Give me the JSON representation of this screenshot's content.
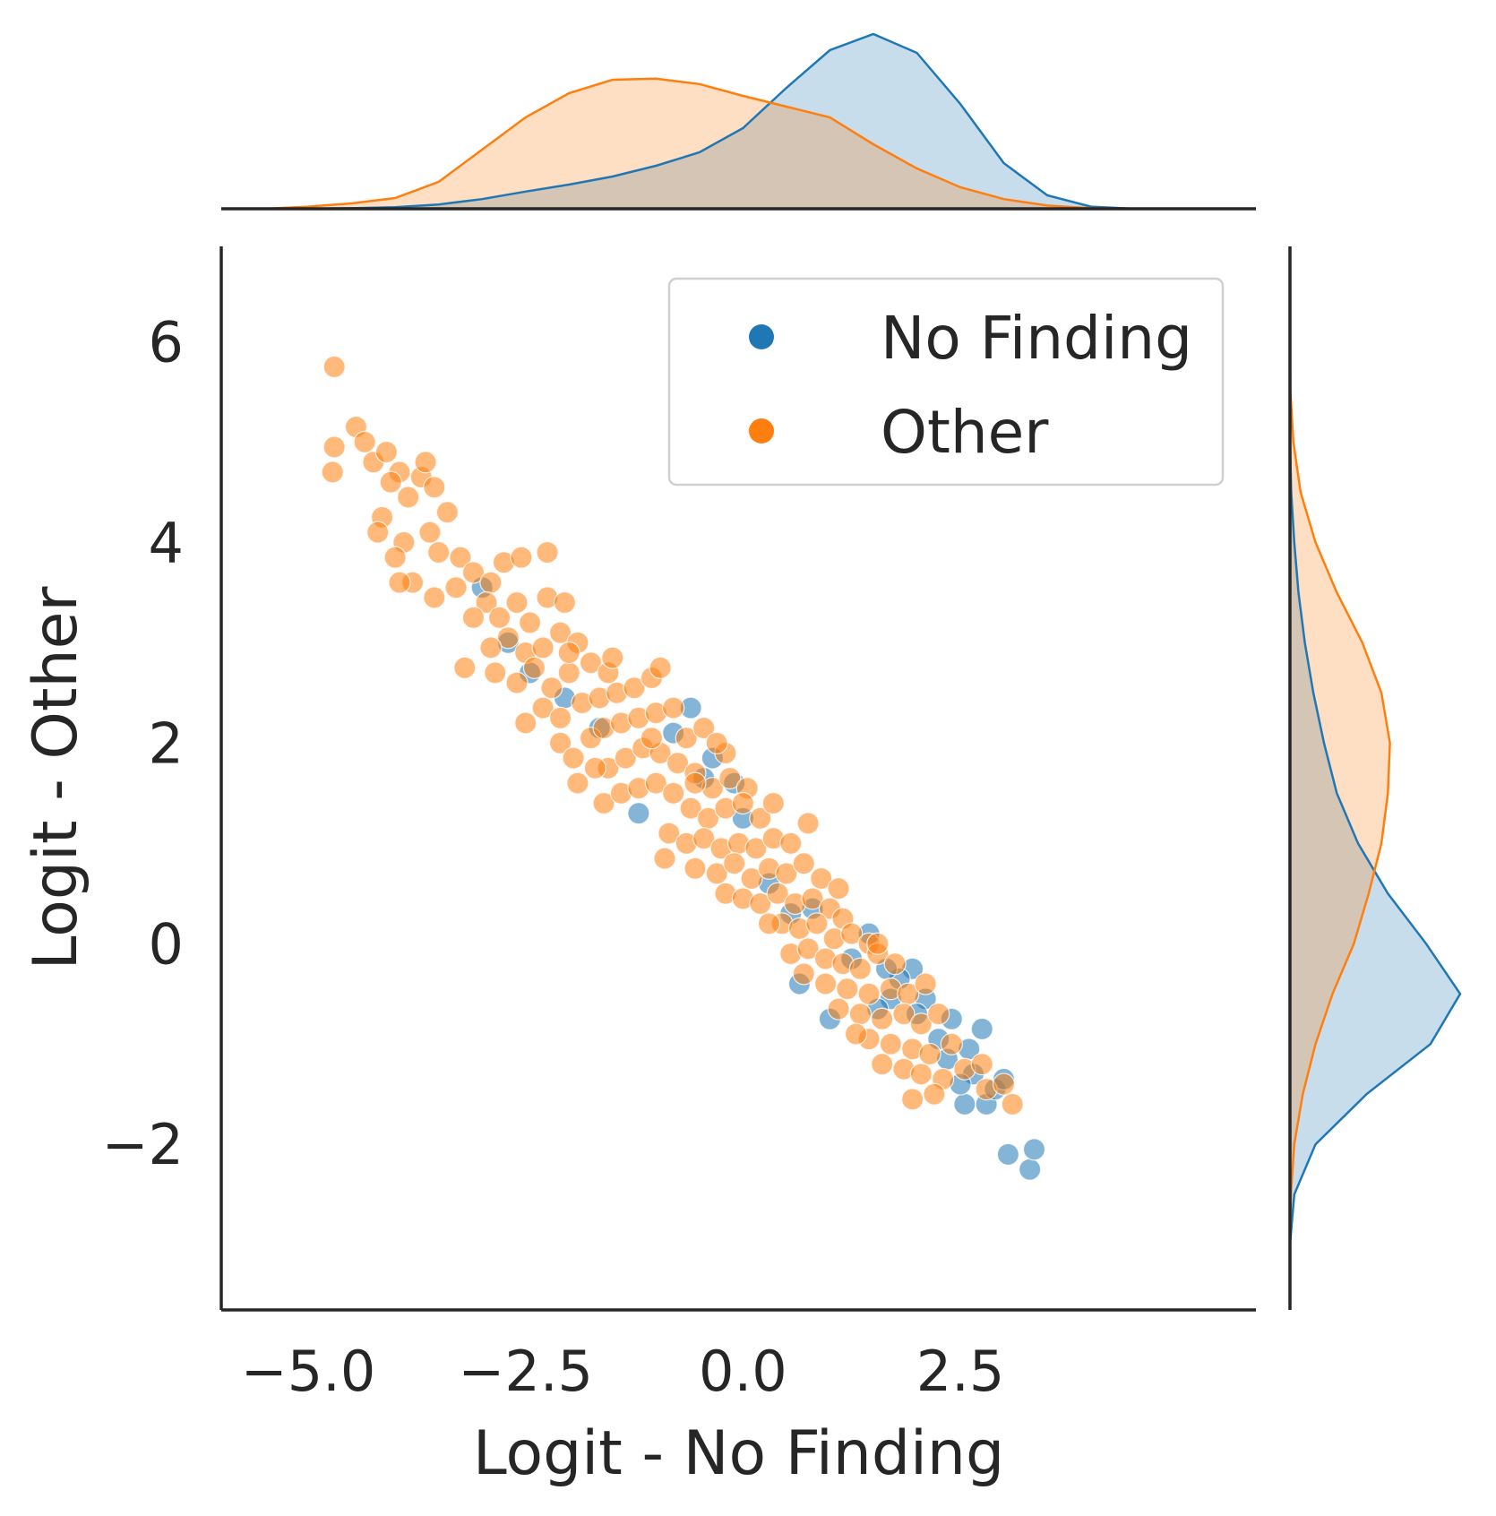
{
  "chart_data": {
    "type": "scatter",
    "subtype": "jointplot with marginal KDE",
    "xlabel": "Logit - No Finding",
    "ylabel": "Logit - Other",
    "xlim": [
      -6.0,
      5.9
    ],
    "ylim": [
      -3.65,
      6.95
    ],
    "x_ticks": [
      -5.0,
      -2.5,
      0.0,
      2.5
    ],
    "x_tick_labels": [
      "−5.0",
      "−2.5",
      "0.0",
      "2.5"
    ],
    "y_ticks": [
      -2,
      0,
      2,
      4,
      6
    ],
    "y_tick_labels": [
      "−2",
      "0",
      "2",
      "4",
      "6"
    ],
    "grid": false,
    "legend_position": "top-right",
    "series": [
      {
        "name": "No Finding",
        "color": "#1f77b4",
        "points": [
          [
            3.3,
            -2.25
          ],
          [
            3.05,
            -2.1
          ],
          [
            3.35,
            -2.05
          ],
          [
            2.55,
            -1.6
          ],
          [
            2.8,
            -1.6
          ],
          [
            2.9,
            -1.45
          ],
          [
            3.0,
            -1.35
          ],
          [
            2.65,
            -1.3
          ],
          [
            2.6,
            -1.05
          ],
          [
            2.75,
            -0.85
          ],
          [
            2.4,
            -0.75
          ],
          [
            2.25,
            -0.95
          ],
          [
            2.1,
            -0.55
          ],
          [
            1.95,
            -0.25
          ],
          [
            1.8,
            -0.35
          ],
          [
            1.7,
            -0.55
          ],
          [
            1.55,
            -0.65
          ],
          [
            1.25,
            -0.15
          ],
          [
            1.0,
            -0.75
          ],
          [
            0.8,
            0.35
          ],
          [
            0.65,
            -0.4
          ],
          [
            0.55,
            0.3
          ],
          [
            0.3,
            0.6
          ],
          [
            0.0,
            1.25
          ],
          [
            -0.1,
            1.6
          ],
          [
            -0.35,
            1.85
          ],
          [
            -0.45,
            1.65
          ],
          [
            -0.6,
            2.35
          ],
          [
            -0.8,
            2.1
          ],
          [
            -1.2,
            1.3
          ],
          [
            -1.65,
            2.15
          ],
          [
            -2.05,
            2.45
          ],
          [
            -2.45,
            2.7
          ],
          [
            -2.7,
            3.0
          ],
          [
            -3.0,
            3.55
          ],
          [
            1.45,
            0.1
          ],
          [
            1.65,
            -0.25
          ],
          [
            2.0,
            -0.7
          ],
          [
            2.35,
            -1.15
          ],
          [
            2.5,
            -1.4
          ]
        ]
      },
      {
        "name": "Other",
        "color": "#ff7f0e",
        "points": [
          [
            -4.7,
            5.75
          ],
          [
            -4.45,
            5.15
          ],
          [
            -4.35,
            5.0
          ],
          [
            -4.7,
            4.95
          ],
          [
            -4.72,
            4.7
          ],
          [
            -4.25,
            4.8
          ],
          [
            -4.1,
            4.9
          ],
          [
            -3.95,
            4.7
          ],
          [
            -3.7,
            4.65
          ],
          [
            -3.55,
            4.55
          ],
          [
            -4.05,
            4.6
          ],
          [
            -3.85,
            4.45
          ],
          [
            -4.15,
            4.25
          ],
          [
            -3.4,
            4.3
          ],
          [
            -3.6,
            4.1
          ],
          [
            -3.9,
            4.0
          ],
          [
            -4.2,
            4.1
          ],
          [
            -3.5,
            3.9
          ],
          [
            -3.25,
            3.85
          ],
          [
            -3.8,
            3.6
          ],
          [
            -3.95,
            3.6
          ],
          [
            -3.55,
            3.45
          ],
          [
            -3.3,
            3.55
          ],
          [
            -3.1,
            3.7
          ],
          [
            -2.9,
            3.6
          ],
          [
            -2.75,
            3.8
          ],
          [
            -2.55,
            3.85
          ],
          [
            -2.95,
            3.4
          ],
          [
            -3.1,
            3.25
          ],
          [
            -2.8,
            3.25
          ],
          [
            -2.6,
            3.4
          ],
          [
            -2.45,
            3.2
          ],
          [
            -2.25,
            3.45
          ],
          [
            -2.05,
            3.4
          ],
          [
            -2.7,
            3.05
          ],
          [
            -2.9,
            2.95
          ],
          [
            -2.5,
            2.9
          ],
          [
            -2.3,
            2.95
          ],
          [
            -2.1,
            3.1
          ],
          [
            -1.9,
            3.0
          ],
          [
            -2.85,
            2.7
          ],
          [
            -2.6,
            2.6
          ],
          [
            -2.4,
            2.75
          ],
          [
            -2.2,
            2.55
          ],
          [
            -2.0,
            2.7
          ],
          [
            -1.75,
            2.8
          ],
          [
            -1.55,
            2.7
          ],
          [
            -2.3,
            2.35
          ],
          [
            -2.1,
            2.25
          ],
          [
            -1.85,
            2.4
          ],
          [
            -1.65,
            2.45
          ],
          [
            -1.45,
            2.5
          ],
          [
            -1.25,
            2.55
          ],
          [
            -1.05,
            2.65
          ],
          [
            -0.95,
            2.75
          ],
          [
            -2.1,
            2.0
          ],
          [
            -1.95,
            1.85
          ],
          [
            -1.75,
            2.05
          ],
          [
            -1.6,
            2.15
          ],
          [
            -1.4,
            2.2
          ],
          [
            -1.2,
            2.25
          ],
          [
            -1.0,
            2.3
          ],
          [
            -0.8,
            2.35
          ],
          [
            -0.65,
            2.05
          ],
          [
            -0.45,
            2.15
          ],
          [
            -0.2,
            1.9
          ],
          [
            -1.55,
            1.75
          ],
          [
            -1.35,
            1.85
          ],
          [
            -1.15,
            1.95
          ],
          [
            -0.95,
            1.9
          ],
          [
            -0.75,
            1.8
          ],
          [
            -0.55,
            1.7
          ],
          [
            -0.35,
            1.55
          ],
          [
            -0.15,
            1.65
          ],
          [
            0.05,
            1.55
          ],
          [
            -1.6,
            1.4
          ],
          [
            -1.4,
            1.5
          ],
          [
            -1.2,
            1.55
          ],
          [
            -1.0,
            1.6
          ],
          [
            -0.8,
            1.5
          ],
          [
            -0.6,
            1.35
          ],
          [
            -0.4,
            1.25
          ],
          [
            -0.2,
            1.35
          ],
          [
            0.0,
            1.4
          ],
          [
            0.2,
            1.25
          ],
          [
            0.35,
            1.4
          ],
          [
            -0.85,
            1.1
          ],
          [
            -0.65,
            1.0
          ],
          [
            -0.45,
            1.05
          ],
          [
            -0.25,
            0.95
          ],
          [
            -0.05,
            1.0
          ],
          [
            0.15,
            0.95
          ],
          [
            0.35,
            1.05
          ],
          [
            0.55,
            1.0
          ],
          [
            -0.9,
            0.85
          ],
          [
            -0.55,
            0.75
          ],
          [
            -0.3,
            0.7
          ],
          [
            -0.1,
            0.8
          ],
          [
            0.1,
            0.65
          ],
          [
            0.3,
            0.75
          ],
          [
            0.5,
            0.7
          ],
          [
            0.7,
            0.8
          ],
          [
            0.9,
            0.65
          ],
          [
            1.1,
            0.55
          ],
          [
            -0.2,
            0.5
          ],
          [
            0.0,
            0.45
          ],
          [
            0.2,
            0.4
          ],
          [
            0.4,
            0.5
          ],
          [
            0.6,
            0.4
          ],
          [
            0.8,
            0.45
          ],
          [
            1.0,
            0.35
          ],
          [
            1.15,
            0.25
          ],
          [
            0.45,
            0.2
          ],
          [
            0.65,
            0.15
          ],
          [
            0.85,
            0.2
          ],
          [
            1.05,
            0.05
          ],
          [
            1.25,
            0.1
          ],
          [
            1.45,
            0.0
          ],
          [
            0.55,
            -0.1
          ],
          [
            0.75,
            -0.05
          ],
          [
            0.95,
            -0.15
          ],
          [
            1.15,
            -0.2
          ],
          [
            1.35,
            -0.25
          ],
          [
            1.55,
            -0.1
          ],
          [
            1.75,
            -0.2
          ],
          [
            1.55,
            0.0
          ],
          [
            0.7,
            -0.3
          ],
          [
            0.95,
            -0.4
          ],
          [
            1.2,
            -0.45
          ],
          [
            1.45,
            -0.5
          ],
          [
            1.7,
            -0.45
          ],
          [
            1.9,
            -0.5
          ],
          [
            2.1,
            -0.4
          ],
          [
            1.1,
            -0.65
          ],
          [
            1.35,
            -0.7
          ],
          [
            1.6,
            -0.75
          ],
          [
            1.85,
            -0.7
          ],
          [
            2.05,
            -0.8
          ],
          [
            2.25,
            -0.7
          ],
          [
            1.45,
            -0.95
          ],
          [
            1.7,
            -1.0
          ],
          [
            1.95,
            -1.05
          ],
          [
            2.15,
            -1.1
          ],
          [
            2.4,
            -1.0
          ],
          [
            1.6,
            -1.2
          ],
          [
            1.85,
            -1.25
          ],
          [
            2.05,
            -1.3
          ],
          [
            2.3,
            -1.35
          ],
          [
            2.55,
            -1.25
          ],
          [
            2.75,
            -1.2
          ],
          [
            1.95,
            -1.55
          ],
          [
            2.2,
            -1.5
          ],
          [
            2.8,
            -1.45
          ],
          [
            3.0,
            -1.4
          ],
          [
            3.1,
            -1.6
          ],
          [
            -1.9,
            1.6
          ],
          [
            -1.7,
            1.75
          ],
          [
            -2.5,
            2.2
          ],
          [
            -2.0,
            2.9
          ],
          [
            -3.2,
            2.75
          ],
          [
            -1.5,
            2.85
          ],
          [
            -1.05,
            2.05
          ],
          [
            -0.55,
            1.6
          ],
          [
            0.3,
            0.2
          ],
          [
            1.3,
            -0.9
          ],
          [
            -2.25,
            3.9
          ],
          [
            -3.65,
            4.8
          ],
          [
            -4.0,
            3.85
          ],
          [
            -0.3,
            2.0
          ],
          [
            0.75,
            1.2
          ]
        ]
      }
    ],
    "kde_marginals": {
      "x_grid": [
        -5.5,
        -5.0,
        -4.5,
        -4.0,
        -3.5,
        -3.0,
        -2.5,
        -2.0,
        -1.5,
        -1.0,
        -0.5,
        0.0,
        0.5,
        1.0,
        1.5,
        2.0,
        2.5,
        3.0,
        3.5,
        4.0,
        4.5
      ],
      "no_finding_x_density": [
        0.0,
        0.0,
        0.001,
        0.003,
        0.008,
        0.018,
        0.032,
        0.045,
        0.06,
        0.08,
        0.105,
        0.15,
        0.225,
        0.295,
        0.325,
        0.29,
        0.195,
        0.085,
        0.025,
        0.004,
        0.0
      ],
      "other_x_density": [
        0.0,
        0.004,
        0.01,
        0.02,
        0.05,
        0.11,
        0.17,
        0.215,
        0.24,
        0.242,
        0.232,
        0.21,
        0.19,
        0.17,
        0.12,
        0.075,
        0.04,
        0.018,
        0.006,
        0.001,
        0.0
      ],
      "y_grid": [
        -3.0,
        -2.5,
        -2.0,
        -1.5,
        -1.0,
        -0.5,
        0.0,
        0.5,
        1.0,
        1.5,
        2.0,
        2.5,
        3.0,
        3.5,
        4.0,
        4.5,
        5.0,
        5.5,
        6.0
      ],
      "no_finding_y_density": [
        0.0,
        0.01,
        0.06,
        0.18,
        0.33,
        0.4,
        0.32,
        0.23,
        0.16,
        0.11,
        0.08,
        0.055,
        0.035,
        0.02,
        0.01,
        0.003,
        0.0,
        0.0,
        0.0
      ],
      "other_y_density": [
        0.0,
        0.002,
        0.01,
        0.03,
        0.06,
        0.1,
        0.15,
        0.185,
        0.215,
        0.23,
        0.235,
        0.215,
        0.17,
        0.11,
        0.06,
        0.025,
        0.008,
        0.001,
        0.0
      ]
    }
  }
}
